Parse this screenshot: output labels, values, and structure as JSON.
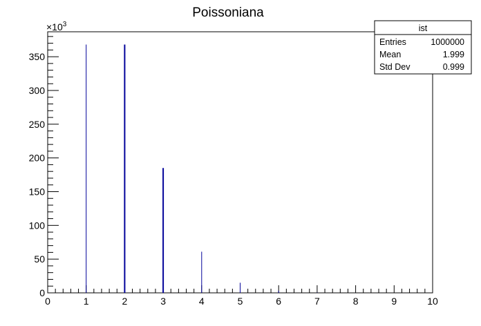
{
  "chart_data": {
    "type": "bar",
    "title": "Poissoniana",
    "x_range": [
      0,
      10
    ],
    "y_range": [
      0,
      387
    ],
    "y_multiplier_label": "×10",
    "y_multiplier_exponent": "3",
    "x_ticks": [
      "0",
      "1",
      "2",
      "3",
      "4",
      "5",
      "6",
      "7",
      "8",
      "9",
      "10"
    ],
    "y_ticks": [
      "0",
      "50",
      "100",
      "150",
      "200",
      "250",
      "300",
      "350"
    ],
    "series": [
      {
        "x": [
          1,
          2,
          3,
          4,
          5,
          6,
          7,
          8,
          9
        ],
        "values": [
          368,
          368,
          185,
          61,
          15,
          3,
          0.5,
          0.1,
          0.01
        ]
      }
    ],
    "line_color": "#000099",
    "stats_box": {
      "name": "ist",
      "rows": [
        {
          "label": "Entries",
          "value": "1000000"
        },
        {
          "label": "Mean",
          "value": "1.999"
        },
        {
          "label": "Std Dev",
          "value": "0.999"
        }
      ]
    }
  }
}
